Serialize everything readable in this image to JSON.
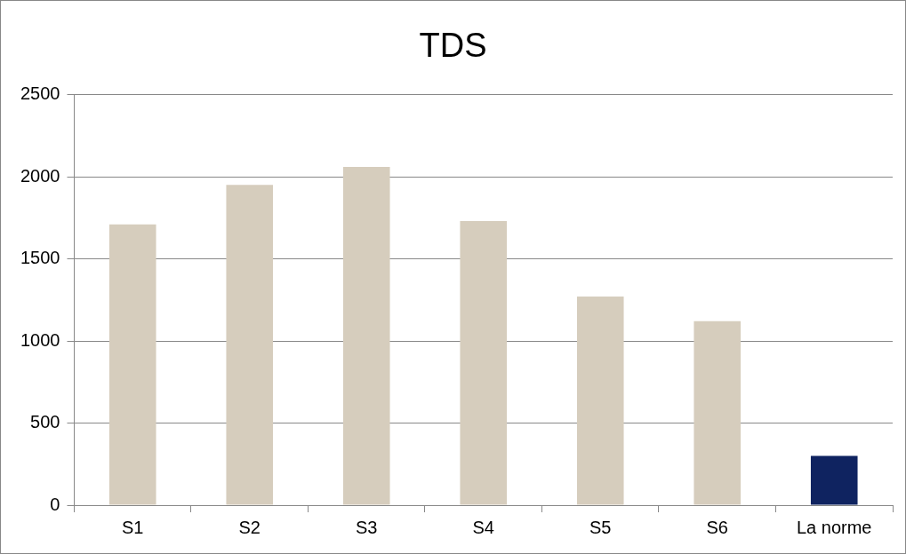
{
  "chart_data": {
    "type": "bar",
    "title": "TDS",
    "categories": [
      "S1",
      "S2",
      "S3",
      "S4",
      "S5",
      "S6",
      "La norme"
    ],
    "values": [
      1710,
      1950,
      2060,
      1730,
      1270,
      1120,
      300
    ],
    "colors": [
      "#d6cdbd",
      "#d6cdbd",
      "#d6cdbd",
      "#d6cdbd",
      "#d6cdbd",
      "#d6cdbd",
      "#0f2360"
    ],
    "ylim": [
      0,
      2500
    ],
    "yticks": [
      0,
      500,
      1000,
      1500,
      2000,
      2500
    ],
    "grid": "y",
    "legend": false
  }
}
